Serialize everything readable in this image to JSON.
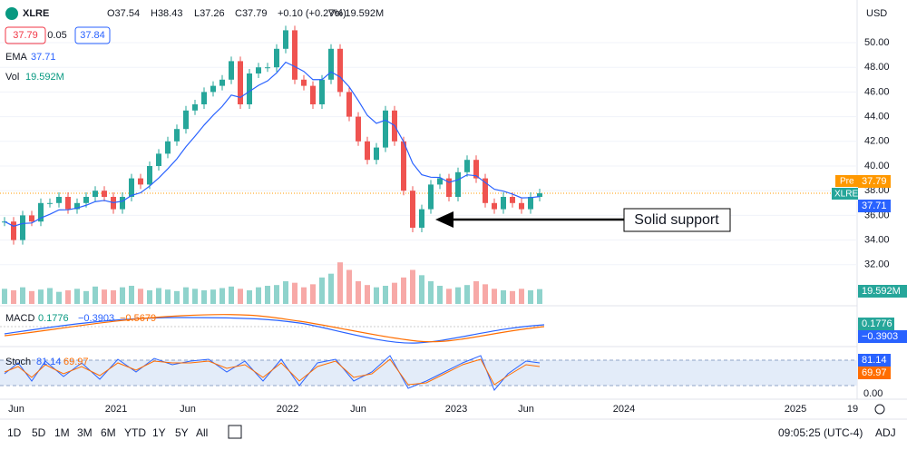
{
  "header": {
    "symbol": "XLRE",
    "open": "O37.54",
    "high": "H38.43",
    "low": "L37.26",
    "close": "C37.79",
    "change": "+0.10 (+0.27%)",
    "volume": "Vol 19.592M",
    "bid": "37.79",
    "spread": "0.05",
    "ask": "37.84"
  },
  "legend": {
    "ema_label": "EMA",
    "ema_value": "37.71",
    "vol_label": "Vol",
    "vol_value": "19.592M",
    "macd_label": "MACD",
    "macd_values": [
      "0.1776",
      "−0.3903",
      "−0.5679"
    ],
    "stoch_label": "Stoch",
    "stoch_values": [
      "81.14",
      "69.97"
    ]
  },
  "chart_data": {
    "type": "candlestick",
    "closes": [
      35.5,
      34,
      36,
      35.5,
      37,
      37,
      37.5,
      36.5,
      37,
      37.5,
      38,
      37.5,
      36.5,
      37.5,
      39,
      38.5,
      40,
      41,
      42,
      43,
      44.5,
      45,
      46,
      46.5,
      47,
      48.5,
      45,
      47.5,
      48,
      48,
      49.5,
      51,
      47,
      46.5,
      45,
      47,
      49.5,
      46,
      44,
      42,
      40.5,
      41.5,
      44.5,
      42,
      38,
      35,
      36.5,
      38.5,
      39,
      37.5,
      39.5,
      40.5,
      39,
      37,
      36.5,
      37.5,
      37,
      36.5,
      37.5,
      37.79
    ],
    "volumes": [
      20,
      18,
      22,
      17,
      19,
      21,
      16,
      18,
      20,
      17,
      23,
      19,
      18,
      22,
      24,
      20,
      18,
      21,
      19,
      17,
      22,
      20,
      18,
      19,
      21,
      23,
      20,
      18,
      22,
      24,
      25,
      30,
      28,
      22,
      26,
      35,
      40,
      55,
      45,
      30,
      25,
      22,
      24,
      28,
      35,
      45,
      38,
      30,
      24,
      20,
      22,
      25,
      30,
      26,
      20,
      18,
      17,
      20,
      18,
      19.592
    ],
    "volume_ylim": [
      0,
      120
    ],
    "ylim": [
      31,
      51.5
    ],
    "yticks": [
      {
        "value": 32,
        "label": "32.00"
      },
      {
        "value": 34,
        "label": "34.00"
      },
      {
        "value": 36,
        "label": "36.00"
      },
      {
        "value": 38,
        "label": "38.00"
      },
      {
        "value": 40,
        "label": "40.00"
      },
      {
        "value": 42,
        "label": "42.00"
      },
      {
        "value": 44,
        "label": "44.00"
      },
      {
        "value": 46,
        "label": "46.00"
      },
      {
        "value": 48,
        "label": "48.00"
      },
      {
        "value": 50,
        "label": "50.00"
      }
    ],
    "x_labels": [
      "Jun",
      "2021",
      "Jun",
      "2022",
      "Jun",
      "2023",
      "Jun",
      "2024",
      "2025",
      "19"
    ],
    "currency": "USD",
    "price_tags": {
      "pre": "Pre",
      "pre_value": "37.79",
      "symbol": "XLRE",
      "ema": "37.71",
      "volume": "19.592M",
      "macd": "0.1776",
      "signal": "−0.3903",
      "stoch_k": "81.14",
      "stoch_d": "69.97",
      "stoch_zero": "0.00"
    },
    "annotation": "Solid support"
  },
  "toolbar": {
    "ranges": [
      "1D",
      "5D",
      "1M",
      "3M",
      "6M",
      "YTD",
      "1Y",
      "5Y",
      "All"
    ],
    "clock": "09:05:25 (UTC-4)",
    "adj": "ADJ"
  }
}
